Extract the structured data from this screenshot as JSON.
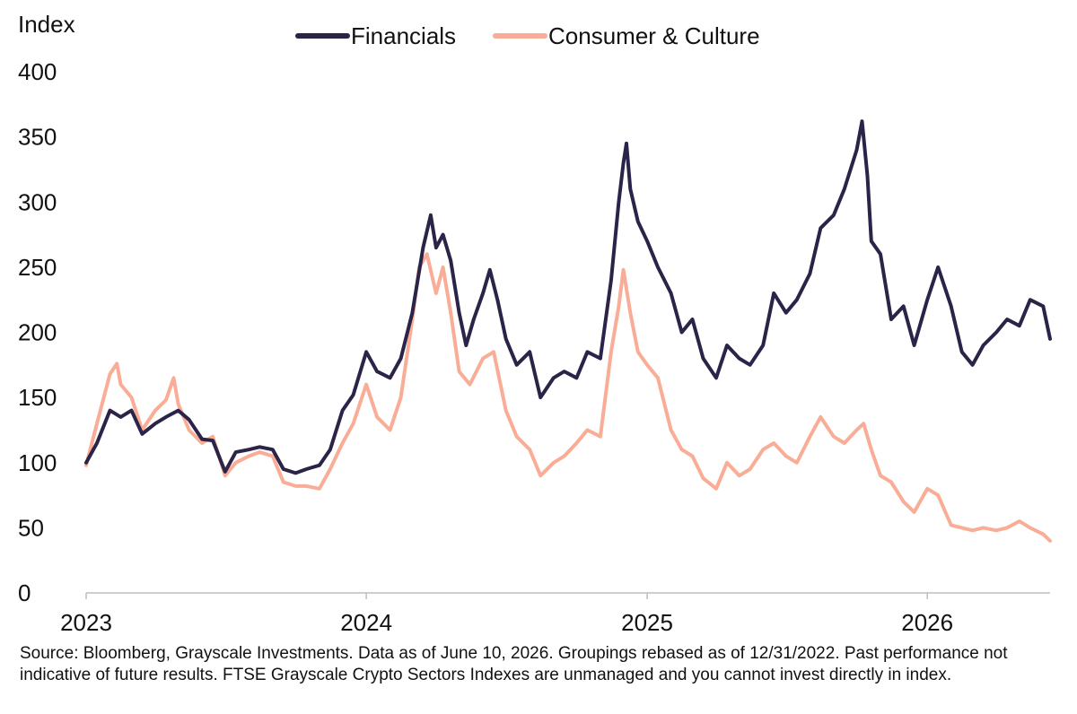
{
  "colors": {
    "financials": "#2b2348",
    "consumer": "#f9ad96",
    "axis": "#bdbdbd"
  },
  "chart_data": {
    "type": "line",
    "ylabel": "Index",
    "ylim": [
      0,
      400
    ],
    "yticks": [
      "0",
      "50",
      "100",
      "150",
      "200",
      "250",
      "300",
      "350",
      "400"
    ],
    "xticks": [
      "2023",
      "2024",
      "2025",
      "2026"
    ],
    "xrange": [
      "2023-01-01",
      "2026-06-10"
    ],
    "grid": false,
    "legend_position": "top-center",
    "series": [
      {
        "name": "Financials",
        "color": "#2b2348",
        "points": [
          [
            "2023-01-01",
            100
          ],
          [
            "2023-01-15",
            115
          ],
          [
            "2023-02-01",
            140
          ],
          [
            "2023-02-15",
            135
          ],
          [
            "2023-03-01",
            140
          ],
          [
            "2023-03-15",
            122
          ],
          [
            "2023-04-01",
            130
          ],
          [
            "2023-04-15",
            135
          ],
          [
            "2023-05-01",
            140
          ],
          [
            "2023-05-15",
            133
          ],
          [
            "2023-06-01",
            118
          ],
          [
            "2023-06-15",
            117
          ],
          [
            "2023-07-01",
            93
          ],
          [
            "2023-07-15",
            108
          ],
          [
            "2023-08-01",
            110
          ],
          [
            "2023-08-15",
            112
          ],
          [
            "2023-09-01",
            110
          ],
          [
            "2023-09-15",
            95
          ],
          [
            "2023-10-01",
            92
          ],
          [
            "2023-10-15",
            95
          ],
          [
            "2023-11-01",
            98
          ],
          [
            "2023-11-15",
            110
          ],
          [
            "2023-12-01",
            140
          ],
          [
            "2023-12-15",
            152
          ],
          [
            "2024-01-01",
            185
          ],
          [
            "2024-01-15",
            170
          ],
          [
            "2024-02-01",
            165
          ],
          [
            "2024-02-15",
            180
          ],
          [
            "2024-03-01",
            215
          ],
          [
            "2024-03-15",
            265
          ],
          [
            "2024-03-25",
            290
          ],
          [
            "2024-04-01",
            265
          ],
          [
            "2024-04-10",
            275
          ],
          [
            "2024-04-20",
            255
          ],
          [
            "2024-05-01",
            215
          ],
          [
            "2024-05-10",
            190
          ],
          [
            "2024-05-20",
            210
          ],
          [
            "2024-06-01",
            230
          ],
          [
            "2024-06-10",
            248
          ],
          [
            "2024-06-20",
            225
          ],
          [
            "2024-07-01",
            195
          ],
          [
            "2024-07-15",
            175
          ],
          [
            "2024-08-01",
            185
          ],
          [
            "2024-08-15",
            150
          ],
          [
            "2024-09-01",
            165
          ],
          [
            "2024-09-15",
            170
          ],
          [
            "2024-10-01",
            165
          ],
          [
            "2024-10-15",
            185
          ],
          [
            "2024-11-01",
            180
          ],
          [
            "2024-11-15",
            240
          ],
          [
            "2024-11-25",
            300
          ],
          [
            "2024-12-01",
            330
          ],
          [
            "2024-12-05",
            345
          ],
          [
            "2024-12-10",
            310
          ],
          [
            "2024-12-20",
            285
          ],
          [
            "2025-01-01",
            270
          ],
          [
            "2025-01-15",
            250
          ],
          [
            "2025-02-01",
            230
          ],
          [
            "2025-02-15",
            200
          ],
          [
            "2025-03-01",
            210
          ],
          [
            "2025-03-15",
            180
          ],
          [
            "2025-04-01",
            165
          ],
          [
            "2025-04-15",
            190
          ],
          [
            "2025-05-01",
            180
          ],
          [
            "2025-05-15",
            175
          ],
          [
            "2025-06-01",
            190
          ],
          [
            "2025-06-15",
            230
          ],
          [
            "2025-07-01",
            215
          ],
          [
            "2025-07-15",
            225
          ],
          [
            "2025-08-01",
            245
          ],
          [
            "2025-08-15",
            280
          ],
          [
            "2025-09-01",
            290
          ],
          [
            "2025-09-15",
            310
          ],
          [
            "2025-10-01",
            340
          ],
          [
            "2025-10-08",
            362
          ],
          [
            "2025-10-15",
            320
          ],
          [
            "2025-10-20",
            270
          ],
          [
            "2025-11-01",
            260
          ],
          [
            "2025-11-15",
            210
          ],
          [
            "2025-12-01",
            220
          ],
          [
            "2025-12-15",
            190
          ],
          [
            "2026-01-01",
            225
          ],
          [
            "2026-01-15",
            250
          ],
          [
            "2026-02-01",
            220
          ],
          [
            "2026-02-15",
            185
          ],
          [
            "2026-03-01",
            175
          ],
          [
            "2026-03-15",
            190
          ],
          [
            "2026-04-01",
            200
          ],
          [
            "2026-04-15",
            210
          ],
          [
            "2026-05-01",
            205
          ],
          [
            "2026-05-15",
            225
          ],
          [
            "2026-06-01",
            220
          ],
          [
            "2026-06-10",
            195
          ]
        ]
      },
      {
        "name": "Consumer & Culture",
        "color": "#f9ad96",
        "points": [
          [
            "2023-01-01",
            98
          ],
          [
            "2023-01-15",
            130
          ],
          [
            "2023-02-01",
            168
          ],
          [
            "2023-02-10",
            176
          ],
          [
            "2023-02-15",
            160
          ],
          [
            "2023-03-01",
            150
          ],
          [
            "2023-03-15",
            125
          ],
          [
            "2023-04-01",
            140
          ],
          [
            "2023-04-15",
            148
          ],
          [
            "2023-04-25",
            165
          ],
          [
            "2023-05-01",
            145
          ],
          [
            "2023-05-15",
            125
          ],
          [
            "2023-06-01",
            115
          ],
          [
            "2023-06-15",
            120
          ],
          [
            "2023-07-01",
            90
          ],
          [
            "2023-07-15",
            100
          ],
          [
            "2023-08-01",
            105
          ],
          [
            "2023-08-15",
            108
          ],
          [
            "2023-09-01",
            105
          ],
          [
            "2023-09-15",
            85
          ],
          [
            "2023-10-01",
            82
          ],
          [
            "2023-10-15",
            82
          ],
          [
            "2023-11-01",
            80
          ],
          [
            "2023-11-15",
            95
          ],
          [
            "2023-12-01",
            115
          ],
          [
            "2023-12-15",
            130
          ],
          [
            "2024-01-01",
            160
          ],
          [
            "2024-01-15",
            135
          ],
          [
            "2024-02-01",
            125
          ],
          [
            "2024-02-15",
            150
          ],
          [
            "2024-03-01",
            210
          ],
          [
            "2024-03-10",
            250
          ],
          [
            "2024-03-20",
            260
          ],
          [
            "2024-04-01",
            230
          ],
          [
            "2024-04-10",
            250
          ],
          [
            "2024-04-20",
            215
          ],
          [
            "2024-05-01",
            170
          ],
          [
            "2024-05-15",
            160
          ],
          [
            "2024-06-01",
            180
          ],
          [
            "2024-06-15",
            185
          ],
          [
            "2024-07-01",
            140
          ],
          [
            "2024-07-15",
            120
          ],
          [
            "2024-08-01",
            110
          ],
          [
            "2024-08-15",
            90
          ],
          [
            "2024-09-01",
            100
          ],
          [
            "2024-09-15",
            105
          ],
          [
            "2024-10-01",
            115
          ],
          [
            "2024-10-15",
            125
          ],
          [
            "2024-11-01",
            120
          ],
          [
            "2024-11-15",
            185
          ],
          [
            "2024-11-25",
            220
          ],
          [
            "2024-12-01",
            248
          ],
          [
            "2024-12-10",
            215
          ],
          [
            "2024-12-20",
            185
          ],
          [
            "2025-01-01",
            175
          ],
          [
            "2025-01-15",
            165
          ],
          [
            "2025-02-01",
            125
          ],
          [
            "2025-02-15",
            110
          ],
          [
            "2025-03-01",
            105
          ],
          [
            "2025-03-15",
            88
          ],
          [
            "2025-04-01",
            80
          ],
          [
            "2025-04-15",
            100
          ],
          [
            "2025-05-01",
            90
          ],
          [
            "2025-05-15",
            95
          ],
          [
            "2025-06-01",
            110
          ],
          [
            "2025-06-15",
            115
          ],
          [
            "2025-07-01",
            105
          ],
          [
            "2025-07-15",
            100
          ],
          [
            "2025-08-01",
            120
          ],
          [
            "2025-08-15",
            135
          ],
          [
            "2025-09-01",
            120
          ],
          [
            "2025-09-15",
            115
          ],
          [
            "2025-10-01",
            125
          ],
          [
            "2025-10-10",
            130
          ],
          [
            "2025-10-20",
            110
          ],
          [
            "2025-11-01",
            90
          ],
          [
            "2025-11-15",
            85
          ],
          [
            "2025-12-01",
            70
          ],
          [
            "2025-12-15",
            62
          ],
          [
            "2026-01-01",
            80
          ],
          [
            "2026-01-15",
            75
          ],
          [
            "2026-02-01",
            52
          ],
          [
            "2026-02-15",
            50
          ],
          [
            "2026-03-01",
            48
          ],
          [
            "2026-03-15",
            50
          ],
          [
            "2026-04-01",
            48
          ],
          [
            "2026-04-15",
            50
          ],
          [
            "2026-05-01",
            55
          ],
          [
            "2026-05-15",
            50
          ],
          [
            "2026-06-01",
            45
          ],
          [
            "2026-06-10",
            40
          ]
        ]
      }
    ]
  },
  "source_text": "Source: Bloomberg, Grayscale Investments. Data as of June 10, 2026. Groupings rebased as of 12/31/2022. Past performance not indicative of future results. FTSE Grayscale Crypto Sectors Indexes are unmanaged and you cannot invest directly in index."
}
